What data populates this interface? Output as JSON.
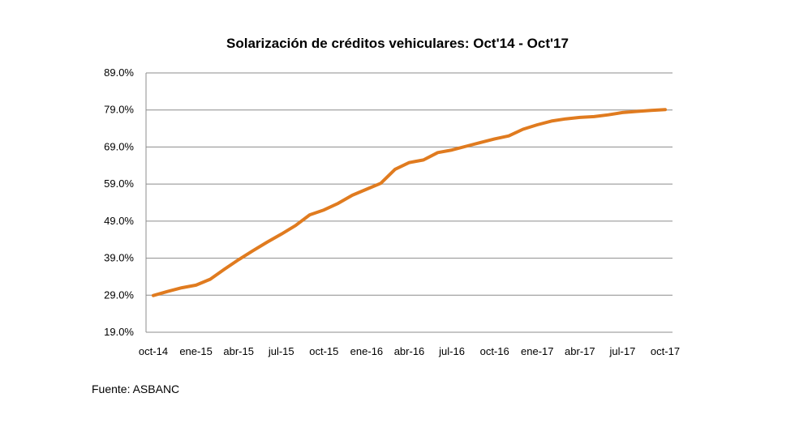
{
  "chart_data": {
    "type": "line",
    "title": "Solarización de créditos vehiculares: Oct'14 - Oct'17",
    "xlabel": "",
    "ylabel": "",
    "ylim": [
      19,
      89
    ],
    "y_ticks": [
      "19.0%",
      "29.0%",
      "39.0%",
      "49.0%",
      "59.0%",
      "69.0%",
      "79.0%",
      "89.0%"
    ],
    "y_tick_values": [
      19,
      29,
      39,
      49,
      59,
      69,
      79,
      89
    ],
    "x_tick_labels": [
      "oct-14",
      "ene-15",
      "abr-15",
      "jul-15",
      "oct-15",
      "ene-16",
      "abr-16",
      "jul-16",
      "oct-16",
      "ene-17",
      "abr-17",
      "jul-17",
      "oct-17"
    ],
    "grid": true,
    "legend": "none",
    "line_color": "#E07B1F",
    "series": [
      {
        "values": [
          28.9,
          30.0,
          31.0,
          31.7,
          33.3,
          36.0,
          38.6,
          41.0,
          43.3,
          45.5,
          47.8,
          50.7,
          52.0,
          53.8,
          56.0,
          57.6,
          59.2,
          63.0,
          64.8,
          65.5,
          67.5,
          68.2,
          69.2,
          70.2,
          71.2,
          72.0,
          73.8,
          75.0,
          76.0,
          76.6,
          77.0,
          77.2,
          77.7,
          78.3,
          78.6,
          78.9,
          79.1
        ]
      }
    ]
  },
  "footer": {
    "source": "Fuente: ASBANC"
  }
}
